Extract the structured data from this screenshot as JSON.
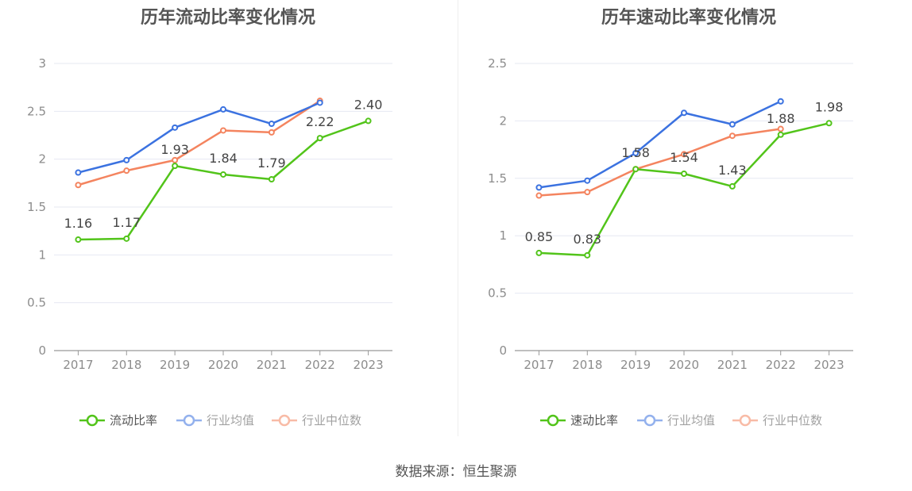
{
  "charts": [
    {
      "title": "历年流动比率变化情况",
      "legend": [
        "流动比率",
        "行业均值",
        "行业中位数"
      ],
      "chart_data": {
        "type": "line",
        "title": "历年流动比率变化情况",
        "categories": [
          "2017",
          "2018",
          "2019",
          "2020",
          "2021",
          "2022",
          "2023"
        ],
        "yticks": [
          "0",
          "0.5",
          "1",
          "1.5",
          "2",
          "2.5",
          "3"
        ],
        "ylim": [
          0,
          3
        ],
        "grid": true,
        "legend_position": "bottom",
        "series": [
          {
            "name": "流动比率",
            "color": "#52c41a",
            "values": [
              1.16,
              1.17,
              1.93,
              1.84,
              1.79,
              2.22,
              2.4
            ],
            "labels": [
              "1.16",
              "1.17",
              "1.93",
              "1.84",
              "1.79",
              "2.22",
              "2.40"
            ]
          },
          {
            "name": "行业均值",
            "color": "#3b72e0",
            "values": [
              1.86,
              1.99,
              2.33,
              2.52,
              2.37,
              2.59,
              null
            ]
          },
          {
            "name": "行业中位数",
            "color": "#f4845f",
            "values": [
              1.73,
              1.88,
              1.99,
              2.3,
              2.28,
              2.61,
              null
            ]
          }
        ]
      }
    },
    {
      "title": "历年速动比率变化情况",
      "legend": [
        "速动比率",
        "行业均值",
        "行业中位数"
      ],
      "chart_data": {
        "type": "line",
        "title": "历年速动比率变化情况",
        "categories": [
          "2017",
          "2018",
          "2019",
          "2020",
          "2021",
          "2022",
          "2023"
        ],
        "yticks": [
          "0",
          "0.5",
          "1",
          "1.5",
          "2",
          "2.5"
        ],
        "ylim": [
          0,
          2.5
        ],
        "grid": true,
        "legend_position": "bottom",
        "series": [
          {
            "name": "速动比率",
            "color": "#52c41a",
            "values": [
              0.85,
              0.83,
              1.58,
              1.54,
              1.43,
              1.88,
              1.98
            ],
            "labels": [
              "0.85",
              "0.83",
              "1.58",
              "1.54",
              "1.43",
              "1.88",
              "1.98"
            ]
          },
          {
            "name": "行业均值",
            "color": "#3b72e0",
            "values": [
              1.42,
              1.48,
              1.72,
              2.07,
              1.97,
              2.17,
              null
            ]
          },
          {
            "name": "行业中位数",
            "color": "#f4845f",
            "values": [
              1.35,
              1.38,
              1.58,
              1.71,
              1.87,
              1.93,
              null
            ]
          }
        ]
      }
    }
  ],
  "source": "数据来源：恒生聚源"
}
